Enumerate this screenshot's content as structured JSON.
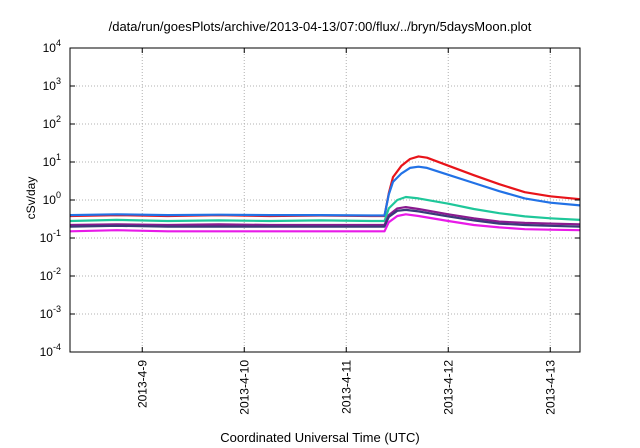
{
  "chart_data": {
    "type": "line",
    "title": "/data/run/goesPlots/archive/2013-04-13/07:00/flux/../bryn/5daysMoon.plot",
    "xlabel": "Coordinated Universal Time (UTC)",
    "ylabel": "cSv/day",
    "yscale": "log",
    "ylim": [
      0.0001,
      10000
    ],
    "y_ticks": [
      {
        "value": 0.0001,
        "base": "10",
        "exp": "-4"
      },
      {
        "value": 0.001,
        "base": "10",
        "exp": "-3"
      },
      {
        "value": 0.01,
        "base": "10",
        "exp": "-2"
      },
      {
        "value": 0.1,
        "base": "10",
        "exp": "-1"
      },
      {
        "value": 1,
        "base": "10",
        "exp": "0"
      },
      {
        "value": 10,
        "base": "10",
        "exp": "1"
      },
      {
        "value": 100,
        "base": "10",
        "exp": "2"
      },
      {
        "value": 1000,
        "base": "10",
        "exp": "3"
      },
      {
        "value": 10000,
        "base": "10",
        "exp": "4"
      }
    ],
    "xlim": [
      "2013-04-08 07:00",
      "2013-04-13 07:00"
    ],
    "x_ticks": [
      {
        "value": "2013-04-09 00:00",
        "label": "2013-4-9"
      },
      {
        "value": "2013-04-10 00:00",
        "label": "2013-4-10"
      },
      {
        "value": "2013-04-11 00:00",
        "label": "2013-4-11"
      },
      {
        "value": "2013-04-12 00:00",
        "label": "2013-4-12"
      },
      {
        "value": "2013-04-13 00:00",
        "label": "2013-4-13"
      }
    ],
    "grid": true,
    "legend": "none",
    "series": [
      {
        "color": "#e8141a",
        "points": [
          [
            "2013-04-08 07:00",
            0.38
          ],
          [
            "2013-04-08 18:00",
            0.4
          ],
          [
            "2013-04-09 06:00",
            0.38
          ],
          [
            "2013-04-09 18:00",
            0.4
          ],
          [
            "2013-04-10 06:00",
            0.38
          ],
          [
            "2013-04-10 18:00",
            0.39
          ],
          [
            "2013-04-11 06:00",
            0.38
          ],
          [
            "2013-04-11 09:00",
            0.38
          ],
          [
            "2013-04-11 10:00",
            1.5
          ],
          [
            "2013-04-11 11:00",
            4
          ],
          [
            "2013-04-11 13:00",
            8
          ],
          [
            "2013-04-11 15:00",
            12
          ],
          [
            "2013-04-11 17:00",
            14
          ],
          [
            "2013-04-11 19:00",
            13
          ],
          [
            "2013-04-12 00:00",
            8
          ],
          [
            "2013-04-12 06:00",
            4.5
          ],
          [
            "2013-04-12 12:00",
            2.6
          ],
          [
            "2013-04-12 18:00",
            1.6
          ],
          [
            "2013-04-13 00:00",
            1.25
          ],
          [
            "2013-04-13 07:00",
            1.05
          ]
        ]
      },
      {
        "color": "#2272e6",
        "points": [
          [
            "2013-04-08 07:00",
            0.4
          ],
          [
            "2013-04-08 18:00",
            0.42
          ],
          [
            "2013-04-09 06:00",
            0.4
          ],
          [
            "2013-04-09 18:00",
            0.41
          ],
          [
            "2013-04-10 06:00",
            0.4
          ],
          [
            "2013-04-10 18:00",
            0.4
          ],
          [
            "2013-04-11 06:00",
            0.39
          ],
          [
            "2013-04-11 09:00",
            0.39
          ],
          [
            "2013-04-11 10:00",
            1.4
          ],
          [
            "2013-04-11 11:00",
            3
          ],
          [
            "2013-04-11 13:00",
            5
          ],
          [
            "2013-04-11 15:00",
            7
          ],
          [
            "2013-04-11 17:00",
            7.5
          ],
          [
            "2013-04-11 19:00",
            7
          ],
          [
            "2013-04-12 00:00",
            4.6
          ],
          [
            "2013-04-12 06:00",
            2.8
          ],
          [
            "2013-04-12 12:00",
            1.7
          ],
          [
            "2013-04-12 18:00",
            1.1
          ],
          [
            "2013-04-13 00:00",
            0.85
          ],
          [
            "2013-04-13 07:00",
            0.72
          ]
        ]
      },
      {
        "color": "#1fc79a",
        "points": [
          [
            "2013-04-08 07:00",
            0.28
          ],
          [
            "2013-04-08 18:00",
            0.3
          ],
          [
            "2013-04-09 06:00",
            0.28
          ],
          [
            "2013-04-09 18:00",
            0.29
          ],
          [
            "2013-04-10 06:00",
            0.28
          ],
          [
            "2013-04-10 18:00",
            0.29
          ],
          [
            "2013-04-11 06:00",
            0.28
          ],
          [
            "2013-04-11 09:00",
            0.28
          ],
          [
            "2013-04-11 10:00",
            0.6
          ],
          [
            "2013-04-11 12:00",
            1.0
          ],
          [
            "2013-04-11 14:00",
            1.2
          ],
          [
            "2013-04-11 17:00",
            1.1
          ],
          [
            "2013-04-12 00:00",
            0.8
          ],
          [
            "2013-04-12 06:00",
            0.58
          ],
          [
            "2013-04-12 12:00",
            0.45
          ],
          [
            "2013-04-12 18:00",
            0.37
          ],
          [
            "2013-04-13 00:00",
            0.33
          ],
          [
            "2013-04-13 07:00",
            0.3
          ]
        ]
      },
      {
        "color": "#8a1a8f",
        "points": [
          [
            "2013-04-08 07:00",
            0.22
          ],
          [
            "2013-04-08 18:00",
            0.23
          ],
          [
            "2013-04-09 06:00",
            0.22
          ],
          [
            "2013-04-09 18:00",
            0.23
          ],
          [
            "2013-04-10 06:00",
            0.22
          ],
          [
            "2013-04-10 18:00",
            0.22
          ],
          [
            "2013-04-11 06:00",
            0.22
          ],
          [
            "2013-04-11 09:00",
            0.22
          ],
          [
            "2013-04-11 10:00",
            0.4
          ],
          [
            "2013-04-11 12:00",
            0.6
          ],
          [
            "2013-04-11 14:00",
            0.65
          ],
          [
            "2013-04-11 17:00",
            0.58
          ],
          [
            "2013-04-12 00:00",
            0.42
          ],
          [
            "2013-04-12 06:00",
            0.33
          ],
          [
            "2013-04-12 12:00",
            0.27
          ],
          [
            "2013-04-12 18:00",
            0.25
          ],
          [
            "2013-04-13 00:00",
            0.24
          ],
          [
            "2013-04-13 07:00",
            0.23
          ]
        ]
      },
      {
        "color": "#3a3a7a",
        "points": [
          [
            "2013-04-08 07:00",
            0.2
          ],
          [
            "2013-04-08 18:00",
            0.21
          ],
          [
            "2013-04-09 06:00",
            0.2
          ],
          [
            "2013-04-09 18:00",
            0.2
          ],
          [
            "2013-04-10 06:00",
            0.2
          ],
          [
            "2013-04-10 18:00",
            0.2
          ],
          [
            "2013-04-11 06:00",
            0.2
          ],
          [
            "2013-04-11 09:00",
            0.2
          ],
          [
            "2013-04-11 10:00",
            0.36
          ],
          [
            "2013-04-11 12:00",
            0.52
          ],
          [
            "2013-04-11 14:00",
            0.55
          ],
          [
            "2013-04-11 17:00",
            0.5
          ],
          [
            "2013-04-12 00:00",
            0.37
          ],
          [
            "2013-04-12 06:00",
            0.29
          ],
          [
            "2013-04-12 12:00",
            0.24
          ],
          [
            "2013-04-12 18:00",
            0.22
          ],
          [
            "2013-04-13 00:00",
            0.21
          ],
          [
            "2013-04-13 07:00",
            0.2
          ]
        ]
      },
      {
        "color": "#e81ae8",
        "points": [
          [
            "2013-04-08 07:00",
            0.15
          ],
          [
            "2013-04-08 18:00",
            0.16
          ],
          [
            "2013-04-09 06:00",
            0.15
          ],
          [
            "2013-04-09 18:00",
            0.15
          ],
          [
            "2013-04-10 06:00",
            0.15
          ],
          [
            "2013-04-10 18:00",
            0.15
          ],
          [
            "2013-04-11 06:00",
            0.15
          ],
          [
            "2013-04-11 09:00",
            0.15
          ],
          [
            "2013-04-11 10:00",
            0.26
          ],
          [
            "2013-04-11 12:00",
            0.38
          ],
          [
            "2013-04-11 14:00",
            0.42
          ],
          [
            "2013-04-11 17:00",
            0.38
          ],
          [
            "2013-04-12 00:00",
            0.28
          ],
          [
            "2013-04-12 06:00",
            0.22
          ],
          [
            "2013-04-12 12:00",
            0.19
          ],
          [
            "2013-04-12 18:00",
            0.17
          ],
          [
            "2013-04-13 00:00",
            0.165
          ],
          [
            "2013-04-13 07:00",
            0.16
          ]
        ]
      }
    ]
  }
}
